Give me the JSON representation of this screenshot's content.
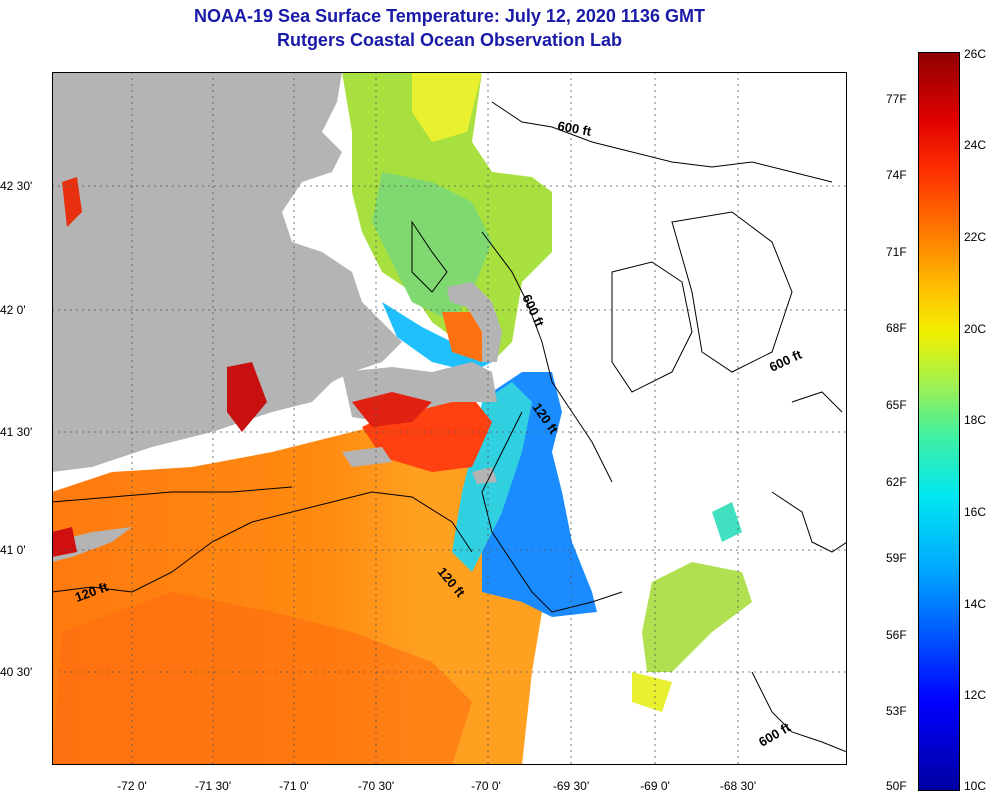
{
  "title": {
    "line1": "NOAA-19 Sea Surface Temperature:  July 12, 2020 1136 GMT",
    "line2": "Rutgers Coastal Ocean Observation Lab"
  },
  "map": {
    "latitude_labels": [
      "42 30'",
      "42 0'",
      "41 30'",
      "41 0'",
      "40 30'"
    ],
    "longitude_labels": [
      "-72 0'",
      "-71 30'",
      "-71 0'",
      "-70 30'",
      "-70 0'",
      "-69 30'",
      "-69 0'",
      "-68 30'"
    ],
    "contour_labels": [
      "600 ft",
      "600 ft",
      "600 ft",
      "120 ft",
      "120 ft",
      "120 ft",
      "600 ft"
    ],
    "colors": {
      "land": "#b4b4b4",
      "no_data": "#ffffff",
      "title": "#1a1aa8"
    }
  },
  "colorbar": {
    "fahrenheit_labels": [
      "77F",
      "74F",
      "71F",
      "68F",
      "65F",
      "62F",
      "59F",
      "56F",
      "53F",
      "50F"
    ],
    "celsius_labels": [
      "26C",
      "24C",
      "22C",
      "20C",
      "18C",
      "16C",
      "14C",
      "12C",
      "10C"
    ]
  }
}
